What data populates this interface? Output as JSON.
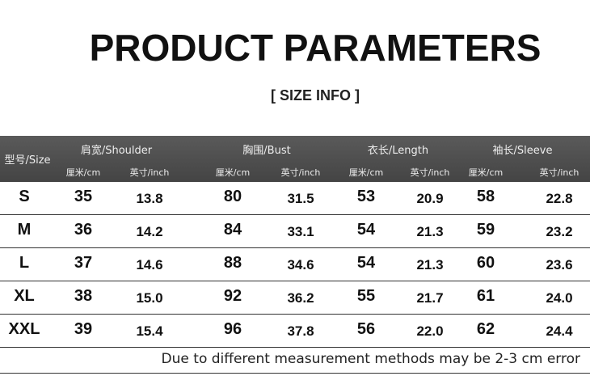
{
  "header": {
    "title": "PRODUCT PARAMETERS",
    "subtitle": "[ SIZE INFO ]"
  },
  "table": {
    "size_header": "型号/Size",
    "groups": [
      "肩宽/Shoulder",
      "胸围/Bust",
      "衣长/Length",
      "袖长/Sleeve"
    ],
    "units": [
      "厘米/cm",
      "英寸/inch"
    ],
    "rows": [
      [
        "S",
        "35",
        "13.8",
        "80",
        "31.5",
        "53",
        "20.9",
        "58",
        "22.8"
      ],
      [
        "M",
        "36",
        "14.2",
        "84",
        "33.1",
        "54",
        "21.3",
        "59",
        "23.2"
      ],
      [
        "L",
        "37",
        "14.6",
        "88",
        "34.6",
        "54",
        "21.3",
        "60",
        "23.6"
      ],
      [
        "XL",
        "38",
        "15.0",
        "92",
        "36.2",
        "55",
        "21.7",
        "61",
        "24.0"
      ],
      [
        "XXL",
        "39",
        "15.4",
        "96",
        "37.8",
        "56",
        "22.0",
        "62",
        "24.4"
      ]
    ]
  },
  "footer": {
    "note": "Due to different measurement methods may be 2-3 cm error"
  }
}
